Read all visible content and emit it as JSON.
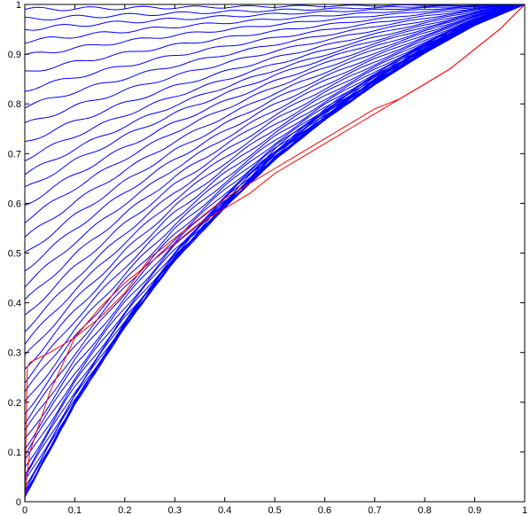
{
  "chart_data": {
    "type": "line",
    "title": "",
    "xlabel": "",
    "ylabel": "",
    "xlim": [
      0,
      1
    ],
    "ylim": [
      0,
      1
    ],
    "grid": false,
    "legend": "none",
    "x_ticks": [
      "0",
      "0.1",
      "0.2",
      "0.3",
      "0.4",
      "0.5",
      "0.6",
      "0.7",
      "0.8",
      "0.9",
      "1"
    ],
    "y_ticks": [
      "0",
      "0.1",
      "0.2",
      "0.3",
      "0.4",
      "0.5",
      "0.6",
      "0.7",
      "0.8",
      "0.9",
      "1"
    ],
    "blue_family": {
      "color": "#0000ff",
      "curve_count": 46,
      "start_y_values": [
        0.995,
        0.985,
        0.975,
        0.962,
        0.947,
        0.929,
        0.91,
        0.891,
        0.871,
        0.85,
        0.83,
        0.811,
        0.793,
        0.772,
        0.751,
        0.728,
        0.705,
        0.682,
        0.658,
        0.634,
        0.61,
        0.586,
        0.562,
        0.538,
        0.514,
        0.49,
        0.466,
        0.442,
        0.418,
        0.394,
        0.37,
        0.346,
        0.322,
        0.298,
        0.274,
        0.25,
        0.226,
        0.202,
        0.178,
        0.154,
        0.13,
        0.106,
        0.082,
        0.058,
        0.034,
        0.01
      ],
      "lower_envelope": {
        "x": [
          0,
          0.1,
          0.2,
          0.3,
          0.4,
          0.5,
          0.6,
          0.7,
          0.8,
          0.9,
          1
        ],
        "y": [
          0.01,
          0.2,
          0.36,
          0.5,
          0.61,
          0.71,
          0.79,
          0.86,
          0.92,
          0.97,
          1
        ]
      },
      "convergence_point": [
        1,
        1
      ]
    },
    "series": [
      {
        "color": "#ff0000",
        "x": [
          0,
          0.005,
          0.01,
          0.05,
          0.1,
          0.15,
          0.2,
          0.25,
          0.3,
          0.35,
          0.4,
          0.45,
          0.5,
          0.55,
          0.6,
          0.65,
          0.7,
          0.75,
          0.8,
          0.85,
          0.9,
          0.95,
          1
        ],
        "y": [
          0,
          0.27,
          0.28,
          0.3,
          0.33,
          0.37,
          0.42,
          0.49,
          0.53,
          0.57,
          0.61,
          0.64,
          0.67,
          0.7,
          0.73,
          0.76,
          0.79,
          0.81,
          0.84,
          0.87,
          0.91,
          0.95,
          1
        ]
      },
      {
        "color": "#ff0000",
        "x": [
          0,
          0.002,
          0.01,
          0.03,
          0.05,
          0.1,
          0.15,
          0.2,
          0.25,
          0.3,
          0.35,
          0.4,
          0.45,
          0.5,
          0.55,
          0.6,
          0.65,
          0.7,
          0.75,
          0.8,
          0.85,
          0.9,
          0.95,
          1
        ],
        "y": [
          0,
          0.03,
          0.1,
          0.16,
          0.22,
          0.33,
          0.39,
          0.44,
          0.48,
          0.52,
          0.56,
          0.59,
          0.62,
          0.66,
          0.69,
          0.72,
          0.75,
          0.78,
          0.81,
          0.84,
          0.87,
          0.91,
          0.95,
          1
        ]
      }
    ]
  }
}
